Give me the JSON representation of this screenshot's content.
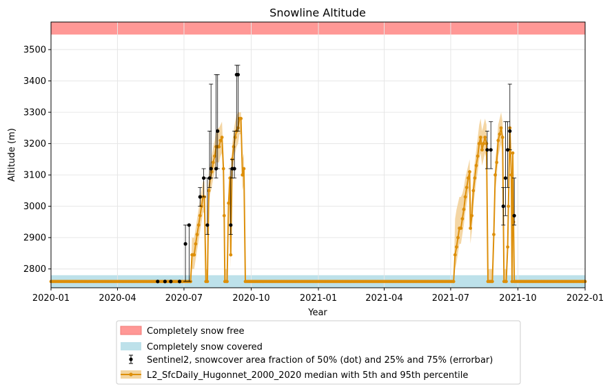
{
  "chart_data": {
    "type": "line",
    "title": "Snowline Altitude",
    "xlabel": "Year",
    "ylabel": "Altitude (m)",
    "xlim": [
      "2020-01-01",
      "2022-01-01"
    ],
    "ylim": [
      2740,
      3588
    ],
    "x_ticks": [
      "2020-01",
      "2020-04",
      "2020-07",
      "2020-10",
      "2021-01",
      "2021-04",
      "2021-07",
      "2021-10",
      "2022-01"
    ],
    "y_ticks": [
      2800,
      2900,
      3000,
      3100,
      3200,
      3300,
      3400,
      3500
    ],
    "grid": true,
    "legend_placement": "below",
    "bands": [
      {
        "name": "Completely snow free",
        "y_range": [
          3548,
          3588
        ],
        "color": "#ff9896"
      },
      {
        "name": "Completely snow covered",
        "y_range": [
          2740,
          2780
        ],
        "color": "#bde1ea"
      }
    ],
    "series": [
      {
        "name": "Sentinel2, snowcover area fraction of 50% (dot) and 25% and 75% (errorbar)",
        "kind": "errorbar",
        "color": "#000000",
        "points": [
          {
            "x": "2020-05-26",
            "y": 2760,
            "lo": 2760,
            "hi": 2760
          },
          {
            "x": "2020-06-05",
            "y": 2760,
            "lo": 2760,
            "hi": 2760
          },
          {
            "x": "2020-06-13",
            "y": 2760,
            "lo": 2760,
            "hi": 2760
          },
          {
            "x": "2020-06-25",
            "y": 2760,
            "lo": 2760,
            "hi": 2760
          },
          {
            "x": "2020-07-03",
            "y": 2880,
            "lo": 2760,
            "hi": 2940
          },
          {
            "x": "2020-07-08",
            "y": 2940,
            "lo": 2760,
            "hi": 2940
          },
          {
            "x": "2020-07-23",
            "y": 3030,
            "lo": 3000,
            "hi": 3060
          },
          {
            "x": "2020-07-28",
            "y": 3090,
            "lo": 3030,
            "hi": 3120
          },
          {
            "x": "2020-08-02",
            "y": 2940,
            "lo": 2910,
            "hi": 3090
          },
          {
            "x": "2020-08-05",
            "y": 3090,
            "lo": 3060,
            "hi": 3240
          },
          {
            "x": "2020-08-07",
            "y": 3120,
            "lo": 3090,
            "hi": 3390
          },
          {
            "x": "2020-08-14",
            "y": 3120,
            "lo": 3090,
            "hi": 3420
          },
          {
            "x": "2020-08-16",
            "y": 3240,
            "lo": 3120,
            "hi": 3420
          },
          {
            "x": "2020-09-03",
            "y": 2940,
            "lo": 2910,
            "hi": 3120
          },
          {
            "x": "2020-09-05",
            "y": 3120,
            "lo": 3090,
            "hi": 3150
          },
          {
            "x": "2020-09-08",
            "y": 3120,
            "lo": 3090,
            "hi": 3240
          },
          {
            "x": "2020-09-11",
            "y": 3420,
            "lo": 3240,
            "hi": 3450
          },
          {
            "x": "2020-09-13",
            "y": 3420,
            "lo": 3240,
            "hi": 3450
          },
          {
            "x": "2021-08-20",
            "y": 3180,
            "lo": 3120,
            "hi": 3240
          },
          {
            "x": "2021-08-25",
            "y": 3180,
            "lo": 3120,
            "hi": 3270
          },
          {
            "x": "2021-09-11",
            "y": 3000,
            "lo": 2940,
            "hi": 3060
          },
          {
            "x": "2021-09-14",
            "y": 3090,
            "lo": 2970,
            "hi": 3270
          },
          {
            "x": "2021-09-17",
            "y": 3180,
            "lo": 3060,
            "hi": 3270
          },
          {
            "x": "2021-09-20",
            "y": 3240,
            "lo": 3180,
            "hi": 3390
          },
          {
            "x": "2021-09-26",
            "y": 2970,
            "lo": 2940,
            "hi": 3090
          }
        ]
      },
      {
        "name": "L2_SfcDaily_Hugonnet_2000_2020 median with 5th and 95th percentile",
        "kind": "line_band",
        "color": "#dd8f0a",
        "band_color": "#f2cf94",
        "points": [
          {
            "x": "2020-01-01",
            "y": 2760,
            "lo": 2760,
            "hi": 2760
          },
          {
            "x": "2020-07-10",
            "y": 2760,
            "lo": 2760,
            "hi": 2760
          },
          {
            "x": "2020-07-12",
            "y": 2845,
            "lo": 2800,
            "hi": 2900
          },
          {
            "x": "2020-07-15",
            "y": 2845,
            "lo": 2800,
            "hi": 2900
          },
          {
            "x": "2020-07-17",
            "y": 2880,
            "lo": 2830,
            "hi": 2930
          },
          {
            "x": "2020-07-19",
            "y": 2910,
            "lo": 2860,
            "hi": 2960
          },
          {
            "x": "2020-07-21",
            "y": 2940,
            "lo": 2890,
            "hi": 2990
          },
          {
            "x": "2020-07-23",
            "y": 2970,
            "lo": 2920,
            "hi": 3020
          },
          {
            "x": "2020-07-25",
            "y": 3000,
            "lo": 2950,
            "hi": 3050
          },
          {
            "x": "2020-07-27",
            "y": 3030,
            "lo": 2980,
            "hi": 3080
          },
          {
            "x": "2020-07-29",
            "y": 3030,
            "lo": 2980,
            "hi": 3080
          },
          {
            "x": "2020-07-31",
            "y": 2760,
            "lo": 2760,
            "hi": 2800
          },
          {
            "x": "2020-08-02",
            "y": 2760,
            "lo": 2760,
            "hi": 2800
          },
          {
            "x": "2020-08-04",
            "y": 3050,
            "lo": 3000,
            "hi": 3100
          },
          {
            "x": "2020-08-06",
            "y": 3090,
            "lo": 3040,
            "hi": 3140
          },
          {
            "x": "2020-08-08",
            "y": 3110,
            "lo": 3060,
            "hi": 3160
          },
          {
            "x": "2020-08-10",
            "y": 3140,
            "lo": 3090,
            "hi": 3190
          },
          {
            "x": "2020-08-12",
            "y": 3160,
            "lo": 3110,
            "hi": 3210
          },
          {
            "x": "2020-08-14",
            "y": 3190,
            "lo": 3140,
            "hi": 3240
          },
          {
            "x": "2020-08-16",
            "y": 3190,
            "lo": 3140,
            "hi": 3250
          },
          {
            "x": "2020-08-18",
            "y": 3190,
            "lo": 3140,
            "hi": 3250
          },
          {
            "x": "2020-08-20",
            "y": 3210,
            "lo": 3160,
            "hi": 3260
          },
          {
            "x": "2020-08-22",
            "y": 3220,
            "lo": 3170,
            "hi": 3270
          },
          {
            "x": "2020-08-24",
            "y": 3120,
            "lo": 3070,
            "hi": 3170
          },
          {
            "x": "2020-08-25",
            "y": 2970,
            "lo": 2920,
            "hi": 3020
          },
          {
            "x": "2020-08-26",
            "y": 2760,
            "lo": 2760,
            "hi": 2800
          },
          {
            "x": "2020-08-29",
            "y": 2760,
            "lo": 2760,
            "hi": 2800
          },
          {
            "x": "2020-08-31",
            "y": 3010,
            "lo": 2960,
            "hi": 3060
          },
          {
            "x": "2020-09-02",
            "y": 3090,
            "lo": 3040,
            "hi": 3140
          },
          {
            "x": "2020-09-03",
            "y": 2845,
            "lo": 2800,
            "hi": 2900
          },
          {
            "x": "2020-09-05",
            "y": 3150,
            "lo": 3100,
            "hi": 3200
          },
          {
            "x": "2020-09-07",
            "y": 3190,
            "lo": 3140,
            "hi": 3240
          },
          {
            "x": "2020-09-09",
            "y": 3220,
            "lo": 3170,
            "hi": 3270
          },
          {
            "x": "2020-09-11",
            "y": 3240,
            "lo": 3190,
            "hi": 3290
          },
          {
            "x": "2020-09-13",
            "y": 3250,
            "lo": 3200,
            "hi": 3300
          },
          {
            "x": "2020-09-15",
            "y": 3280,
            "lo": 3230,
            "hi": 3300
          },
          {
            "x": "2020-09-17",
            "y": 3280,
            "lo": 3230,
            "hi": 3300
          },
          {
            "x": "2020-09-19",
            "y": 3100,
            "lo": 3050,
            "hi": 3150
          },
          {
            "x": "2020-09-21",
            "y": 3120,
            "lo": 3070,
            "hi": 3170
          },
          {
            "x": "2020-09-23",
            "y": 2760,
            "lo": 2760,
            "hi": 2760
          },
          {
            "x": "2021-07-05",
            "y": 2760,
            "lo": 2760,
            "hi": 2760
          },
          {
            "x": "2021-07-07",
            "y": 2845,
            "lo": 2800,
            "hi": 2960
          },
          {
            "x": "2021-07-09",
            "y": 2870,
            "lo": 2820,
            "hi": 2990
          },
          {
            "x": "2021-07-11",
            "y": 2900,
            "lo": 2850,
            "hi": 3010
          },
          {
            "x": "2021-07-13",
            "y": 2930,
            "lo": 2880,
            "hi": 3030
          },
          {
            "x": "2021-07-15",
            "y": 2930,
            "lo": 2880,
            "hi": 3030
          },
          {
            "x": "2021-07-17",
            "y": 2960,
            "lo": 2910,
            "hi": 3040
          },
          {
            "x": "2021-07-19",
            "y": 2990,
            "lo": 2940,
            "hi": 3060
          },
          {
            "x": "2021-07-21",
            "y": 3030,
            "lo": 2980,
            "hi": 3090
          },
          {
            "x": "2021-07-23",
            "y": 3060,
            "lo": 3010,
            "hi": 3110
          },
          {
            "x": "2021-07-25",
            "y": 3090,
            "lo": 3040,
            "hi": 3130
          },
          {
            "x": "2021-07-27",
            "y": 3110,
            "lo": 3060,
            "hi": 3150
          },
          {
            "x": "2021-07-28",
            "y": 2930,
            "lo": 2880,
            "hi": 2990
          },
          {
            "x": "2021-07-30",
            "y": 2970,
            "lo": 2920,
            "hi": 3030
          },
          {
            "x": "2021-08-01",
            "y": 3050,
            "lo": 3000,
            "hi": 3100
          },
          {
            "x": "2021-08-03",
            "y": 3090,
            "lo": 3040,
            "hi": 3140
          },
          {
            "x": "2021-08-05",
            "y": 3130,
            "lo": 3080,
            "hi": 3180
          },
          {
            "x": "2021-08-07",
            "y": 3160,
            "lo": 3110,
            "hi": 3220
          },
          {
            "x": "2021-08-09",
            "y": 3200,
            "lo": 3150,
            "hi": 3260
          },
          {
            "x": "2021-08-11",
            "y": 3220,
            "lo": 3170,
            "hi": 3280
          },
          {
            "x": "2021-08-13",
            "y": 3180,
            "lo": 3130,
            "hi": 3240
          },
          {
            "x": "2021-08-15",
            "y": 3200,
            "lo": 3150,
            "hi": 3260
          },
          {
            "x": "2021-08-17",
            "y": 3220,
            "lo": 3170,
            "hi": 3280
          },
          {
            "x": "2021-08-19",
            "y": 3200,
            "lo": 3150,
            "hi": 3260
          },
          {
            "x": "2021-08-21",
            "y": 2760,
            "lo": 2760,
            "hi": 2800
          },
          {
            "x": "2021-08-27",
            "y": 2760,
            "lo": 2760,
            "hi": 2800
          },
          {
            "x": "2021-08-29",
            "y": 2910,
            "lo": 2860,
            "hi": 2960
          },
          {
            "x": "2021-08-31",
            "y": 3100,
            "lo": 3050,
            "hi": 3150
          },
          {
            "x": "2021-09-02",
            "y": 3140,
            "lo": 3090,
            "hi": 3190
          },
          {
            "x": "2021-09-04",
            "y": 3210,
            "lo": 3160,
            "hi": 3260
          },
          {
            "x": "2021-09-06",
            "y": 3230,
            "lo": 3180,
            "hi": 3280
          },
          {
            "x": "2021-09-08",
            "y": 3250,
            "lo": 3200,
            "hi": 3300
          },
          {
            "x": "2021-09-10",
            "y": 3220,
            "lo": 3170,
            "hi": 3270
          },
          {
            "x": "2021-09-12",
            "y": 2760,
            "lo": 2760,
            "hi": 2800
          },
          {
            "x": "2021-09-15",
            "y": 2760,
            "lo": 2760,
            "hi": 2800
          },
          {
            "x": "2021-09-17",
            "y": 2870,
            "lo": 2820,
            "hi": 2920
          },
          {
            "x": "2021-09-18",
            "y": 3000,
            "lo": 2950,
            "hi": 3050
          },
          {
            "x": "2021-09-20",
            "y": 3250,
            "lo": 3200,
            "hi": 3300
          },
          {
            "x": "2021-09-22",
            "y": 3100,
            "lo": 3050,
            "hi": 3150
          },
          {
            "x": "2021-09-23",
            "y": 2760,
            "lo": 2760,
            "hi": 2800
          },
          {
            "x": "2021-09-24",
            "y": 3170,
            "lo": 3120,
            "hi": 3220
          },
          {
            "x": "2021-09-25",
            "y": 2950,
            "lo": 2900,
            "hi": 3000
          },
          {
            "x": "2021-09-26",
            "y": 2760,
            "lo": 2760,
            "hi": 2760
          },
          {
            "x": "2022-01-01",
            "y": 2760,
            "lo": 2760,
            "hi": 2760
          }
        ]
      }
    ]
  }
}
